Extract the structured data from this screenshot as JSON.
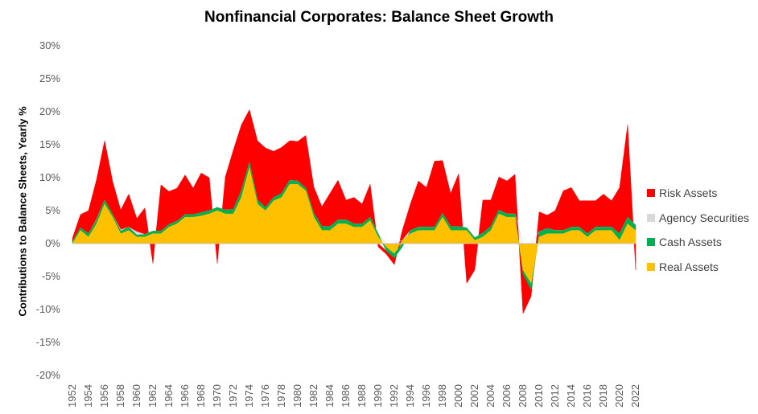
{
  "chart_data": {
    "type": "area",
    "title": "Nonfinancial Corporates: Balance Sheet Growth",
    "xlabel": "",
    "ylabel": "Contributions to Balance Sheets, Yearly %",
    "ylim": [
      -20,
      30
    ],
    "y_ticks": [
      "30%",
      "25%",
      "20%",
      "15%",
      "10%",
      "5%",
      "0%",
      "-5%",
      "-10%",
      "-15%",
      "-20%"
    ],
    "y_tick_values": [
      30,
      25,
      20,
      15,
      10,
      5,
      0,
      -5,
      -10,
      -15,
      -20
    ],
    "x_ticks": [
      "1952",
      "1954",
      "1956",
      "1958",
      "1960",
      "1962",
      "1964",
      "1966",
      "1968",
      "1970",
      "1972",
      "1974",
      "1976",
      "1978",
      "1980",
      "1982",
      "1984",
      "1986",
      "1988",
      "1990",
      "1992",
      "1994",
      "1996",
      "1998",
      "2000",
      "2002",
      "2004",
      "2006",
      "2008",
      "2010",
      "2012",
      "2014",
      "2016",
      "2018",
      "2020",
      "2022"
    ],
    "xlim": [
      1952,
      2022
    ],
    "legend_position": "right",
    "x": [
      1952,
      1953,
      1954,
      1955,
      1956,
      1957,
      1958,
      1959,
      1960,
      1961,
      1962,
      1963,
      1964,
      1965,
      1966,
      1967,
      1968,
      1969,
      1970,
      1971,
      1972,
      1973,
      1974,
      1975,
      1976,
      1977,
      1978,
      1979,
      1980,
      1981,
      1982,
      1983,
      1984,
      1985,
      1986,
      1987,
      1988,
      1989,
      1990,
      1991,
      1992,
      1993,
      1994,
      1995,
      1996,
      1997,
      1998,
      1999,
      2000,
      2001,
      2002,
      2003,
      2004,
      2005,
      2006,
      2007,
      2008,
      2009,
      2010,
      2011,
      2012,
      2013,
      2014,
      2015,
      2016,
      2017,
      2018,
      2019,
      2020,
      2021,
      2022
    ],
    "series": [
      {
        "name": "Risk Assets",
        "color": "#FF0000",
        "values": [
          0.5,
          2,
          3.5,
          6,
          9,
          5,
          3,
          5,
          2,
          4,
          -3,
          7,
          5,
          5,
          6,
          4,
          6,
          5,
          -3,
          5,
          9,
          10,
          8,
          9,
          9,
          7,
          7,
          6,
          6,
          8,
          4,
          3,
          5,
          6,
          3,
          4,
          3,
          5,
          -0.5,
          -0.5,
          -1,
          1.5,
          4,
          7,
          6,
          10,
          8,
          5,
          8,
          -6,
          -4,
          5,
          4,
          5,
          5,
          6,
          -6,
          -1,
          3,
          2,
          3,
          6,
          6,
          4,
          5,
          4,
          5,
          4,
          7,
          14,
          -4
        ]
      },
      {
        "name": "Agency Securities",
        "color": "#D9D9D9",
        "values": [
          0,
          0,
          0,
          0.1,
          0,
          0,
          0.2,
          0,
          0.5,
          0,
          0,
          0,
          0,
          0,
          0,
          0,
          0,
          0,
          0,
          0,
          0,
          0,
          0,
          0,
          0,
          0,
          0,
          0,
          0,
          0,
          0,
          0,
          0,
          0,
          0,
          0,
          0,
          0,
          0,
          0,
          0,
          0,
          0,
          0,
          0,
          0,
          0,
          0,
          0,
          0,
          0,
          0,
          0,
          0,
          0,
          0,
          0,
          0,
          0,
          0,
          0,
          0,
          0,
          0,
          0,
          0,
          0,
          0,
          0,
          0,
          0
        ]
      },
      {
        "name": "Cash Assets",
        "color": "#00B050",
        "values": [
          0.3,
          0.4,
          0.5,
          0.6,
          0.6,
          0.4,
          0.4,
          0.5,
          0.3,
          0.4,
          0.4,
          0.4,
          0.4,
          0.4,
          0.4,
          0.4,
          0.5,
          0.5,
          0.5,
          0.6,
          0.7,
          1,
          0.8,
          0.6,
          0.5,
          0.5,
          0.6,
          0.6,
          0.5,
          0.4,
          0.6,
          0.6,
          0.6,
          0.6,
          0.6,
          0.5,
          0.5,
          0.5,
          0.5,
          -0.6,
          -0.7,
          -0.5,
          0.5,
          0.5,
          0.5,
          0.5,
          0.6,
          0.6,
          0.6,
          0.4,
          0.4,
          0.6,
          0.6,
          0.6,
          0.5,
          0.5,
          -0.6,
          -1,
          0.8,
          0.8,
          0.5,
          0.5,
          0.5,
          0.5,
          0.5,
          0.5,
          0.5,
          0.5,
          1,
          1,
          0.8
        ]
      },
      {
        "name": "Real Assets",
        "color": "#FFC000",
        "values": [
          0,
          2,
          1,
          3,
          6,
          4,
          1.5,
          2,
          1,
          1,
          1.5,
          1.5,
          2.5,
          3,
          4,
          4,
          4.2,
          4.5,
          5,
          4.5,
          4.5,
          7,
          11.5,
          6,
          5,
          6.5,
          7,
          9,
          9,
          8,
          4,
          2,
          2,
          3,
          3,
          2.5,
          2.5,
          3.5,
          1,
          -0.5,
          -1.5,
          0.5,
          1.5,
          2,
          2,
          2,
          4,
          2,
          2,
          2,
          0.5,
          1,
          2,
          4.5,
          4,
          4,
          -4,
          -6,
          1,
          1.5,
          1.5,
          1.5,
          2,
          2,
          1,
          2,
          2,
          2,
          0.5,
          3,
          2
        ]
      }
    ]
  }
}
